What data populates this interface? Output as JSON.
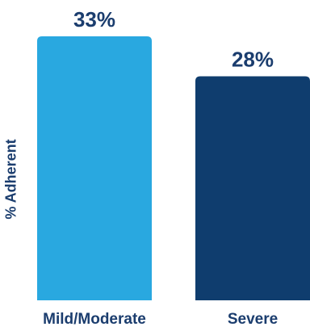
{
  "chart_data": {
    "type": "bar",
    "title": "",
    "xlabel": "",
    "ylabel": "% Adherent",
    "categories": [
      "Mild/Moderate",
      "Severe"
    ],
    "values": [
      33,
      28
    ],
    "value_labels": [
      "33%",
      "28%"
    ],
    "colors": [
      "#29a8e0",
      "#0f3d6e"
    ],
    "label_color": "#1b3d6e",
    "ylim": [
      0,
      33
    ],
    "grid": false
  }
}
